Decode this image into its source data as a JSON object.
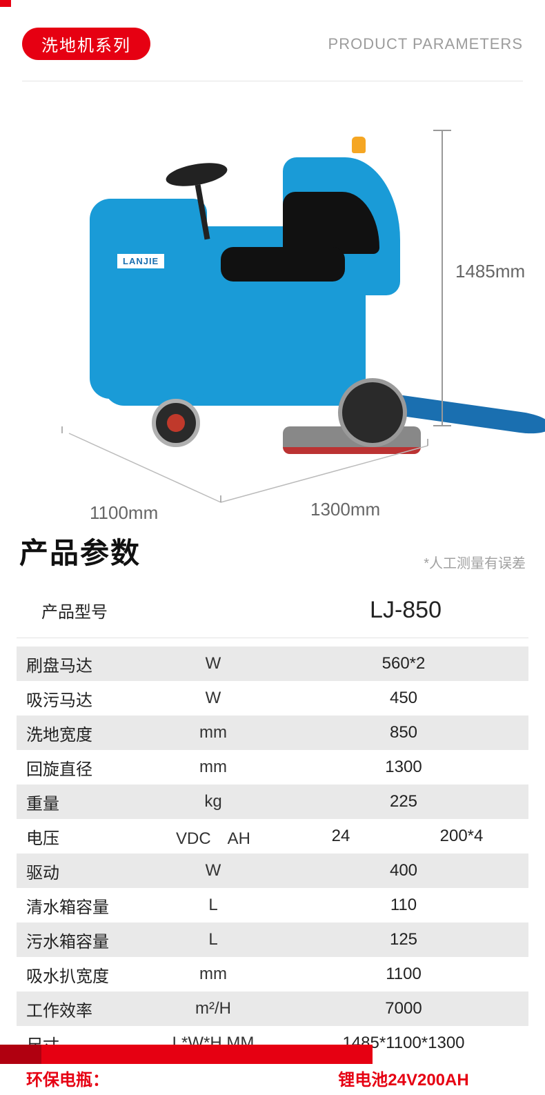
{
  "header": {
    "pill": "洗地机系列",
    "right": "PRODUCT PARAMETERS"
  },
  "diagram": {
    "brand": "LANJIE",
    "height_label": "1485mm",
    "depth_label": "1100mm",
    "width_label": "1300mm"
  },
  "specs": {
    "title": "产品参数",
    "note": "*人工测量有误差",
    "model_label": "产品型号",
    "model_value": "LJ-850",
    "rows": [
      {
        "name": "刷盘马达",
        "unit": "W",
        "value": "560*2",
        "shaded": true
      },
      {
        "name": "吸污马达",
        "unit": "W",
        "value": "450",
        "shaded": false
      },
      {
        "name": "洗地宽度",
        "unit": "mm",
        "value": "850",
        "shaded": true
      },
      {
        "name": "回旋直径",
        "unit": "mm",
        "value": "1300",
        "shaded": false
      },
      {
        "name": "重量",
        "unit": "kg",
        "value": "225",
        "shaded": true
      },
      {
        "name": "电压",
        "unit": "VDC　AH",
        "value": "24",
        "value2": "200*4",
        "shaded": false
      },
      {
        "name": "驱动",
        "unit": "W",
        "value": "400",
        "shaded": true
      },
      {
        "name": "清水箱容量",
        "unit": "L",
        "value": "110",
        "shaded": false
      },
      {
        "name": "污水箱容量",
        "unit": "L",
        "value": "125",
        "shaded": true
      },
      {
        "name": "吸水扒宽度",
        "unit": "mm",
        "value": "1100",
        "shaded": false
      },
      {
        "name": "工作效率",
        "unit": "m²/H",
        "value": "7000",
        "shaded": true
      },
      {
        "name": "尺寸",
        "unit": "L*W*H MM",
        "value": "1485*1100*1300",
        "shaded": false
      },
      {
        "name": "环保电瓶：",
        "unit": "",
        "value": "锂电池24V200AH",
        "shaded": false,
        "red": true
      }
    ]
  },
  "colors": {
    "accent_red": "#e60012",
    "machine_blue": "#1a9bd7",
    "row_shade": "#e9e9e9",
    "text_gray": "#9c9c9c"
  }
}
